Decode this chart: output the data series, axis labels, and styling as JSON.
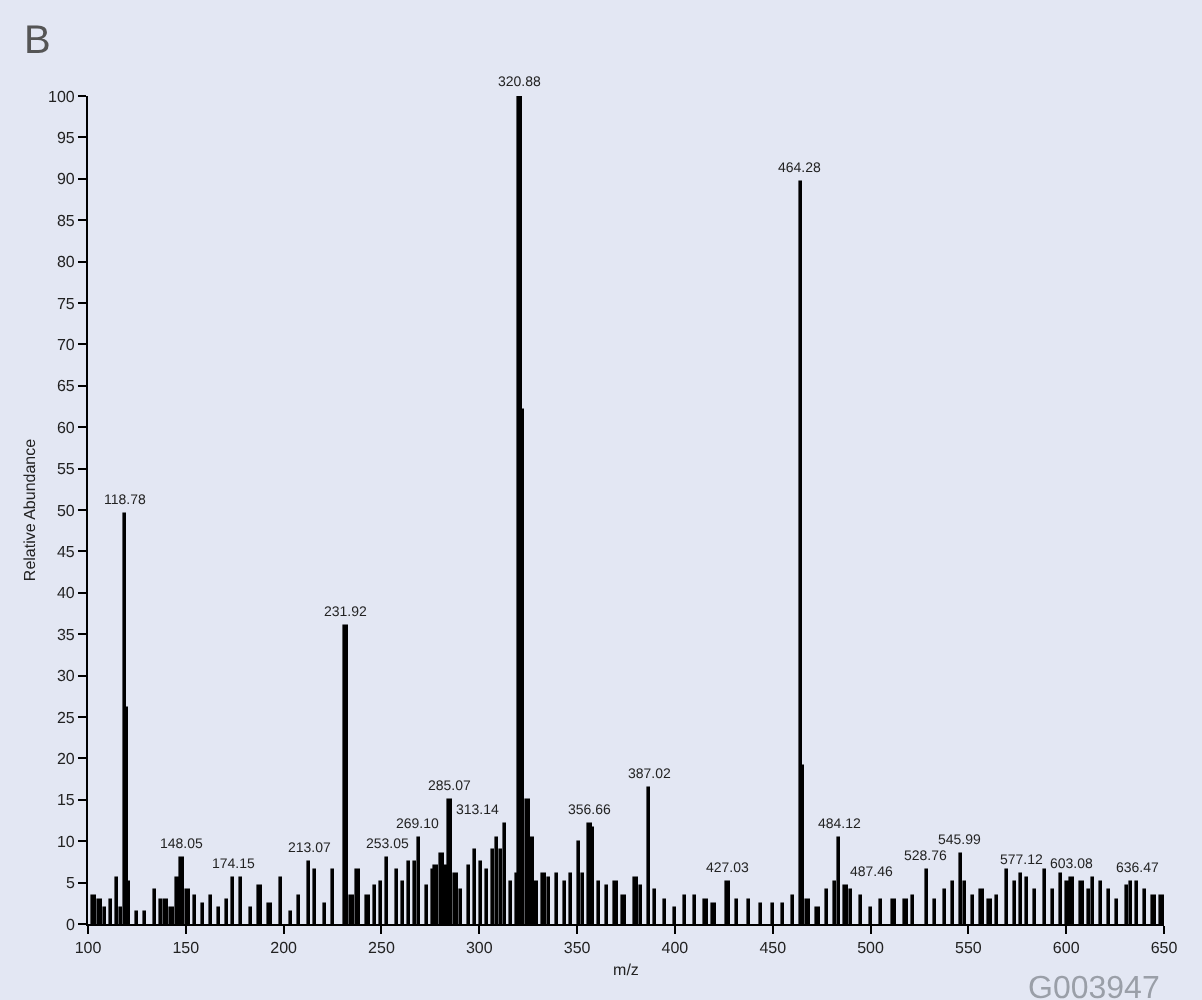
{
  "chart_data": {
    "type": "bar",
    "title": "B",
    "xlabel": "m/z",
    "ylabel": "Relative Abundance",
    "color": "#000000",
    "x": [
      103,
      106,
      109,
      112,
      115,
      117,
      118.78,
      120.2,
      121,
      125,
      129,
      134,
      137,
      140,
      143,
      146,
      148.05,
      151,
      155,
      159,
      163,
      167,
      171,
      174.15,
      178,
      183,
      188,
      193,
      199,
      204,
      208,
      213.07,
      216,
      221,
      225,
      231.92,
      235,
      238,
      243,
      247,
      250,
      253.05,
      258,
      261,
      264,
      267,
      269.1,
      273,
      276,
      278,
      281,
      283,
      285.07,
      288,
      291,
      295,
      298,
      301,
      304,
      307,
      309,
      311,
      313.14,
      316,
      319,
      320.88,
      322.0,
      324.8,
      327,
      329,
      333,
      336,
      340,
      344,
      347,
      351,
      353,
      356.66,
      358.4,
      361,
      365,
      370,
      374,
      380,
      383,
      387.02,
      390,
      395,
      400,
      405,
      410,
      416,
      420,
      427.03,
      432,
      438,
      444,
      450,
      455,
      460,
      464.28,
      465.2,
      468,
      473,
      478,
      482,
      484.12,
      487.46,
      490,
      495,
      500,
      505,
      512,
      518,
      522,
      528.76,
      533,
      538,
      542,
      545.99,
      548,
      552,
      557,
      561,
      565,
      570,
      574,
      577.12,
      580,
      584,
      589,
      593,
      597,
      601,
      603.08,
      608,
      612,
      614,
      618,
      622,
      626,
      631,
      633,
      636.47,
      640,
      645,
      649
    ],
    "values": [
      3.5,
      3,
      2,
      3,
      5.5,
      2,
      49.5,
      26,
      5,
      1.5,
      1.5,
      4,
      3,
      3,
      2,
      5.5,
      8,
      4,
      3.5,
      2.5,
      3.5,
      2,
      3,
      5.5,
      5.5,
      2,
      4.5,
      2.5,
      5.5,
      1.5,
      3.5,
      7.5,
      6.5,
      2.5,
      6.5,
      36,
      3.5,
      6.5,
      3.5,
      4.5,
      5,
      8,
      6.5,
      5,
      7.5,
      7.5,
      10.5,
      4.5,
      6.5,
      7,
      8.5,
      7,
      15,
      6,
      4,
      7,
      9,
      7.5,
      6.5,
      9,
      10.5,
      9,
      12,
      5,
      6,
      100,
      62,
      15,
      10.5,
      5,
      6,
      5.5,
      6,
      5,
      6,
      10,
      6,
      12,
      11.5,
      5,
      4.5,
      5,
      3.5,
      5.5,
      4.5,
      16.5,
      4,
      3,
      2,
      3.5,
      3.5,
      3,
      2.5,
      5,
      3,
      3,
      2.5,
      2.5,
      2.5,
      3.5,
      89.5,
      19,
      3,
      2,
      4,
      5,
      10.5,
      4.5,
      4,
      3.5,
      2,
      3,
      3,
      3,
      3.5,
      6.5,
      3,
      4,
      5,
      8.5,
      5,
      3.5,
      4,
      3,
      3.5,
      6.5,
      5,
      6,
      5.5,
      4,
      6.5,
      4,
      6,
      5,
      5.5,
      5,
      4,
      5.5,
      5,
      4,
      3,
      4.5,
      5,
      5,
      4,
      3.5,
      3.5
    ],
    "xlim": [
      100,
      650
    ],
    "xticks": [
      100,
      150,
      200,
      250,
      300,
      350,
      400,
      450,
      500,
      550,
      600,
      650
    ],
    "ylim": [
      0,
      100
    ],
    "yticks": [
      0,
      5,
      10,
      15,
      20,
      25,
      30,
      35,
      40,
      45,
      50,
      55,
      60,
      65,
      70,
      75,
      80,
      85,
      90,
      95,
      100
    ],
    "grid": false,
    "annotations": [
      {
        "text": "118.78",
        "x": 118.78,
        "y": 49.5
      },
      {
        "text": "148.05",
        "x": 148.05,
        "y": 8
      },
      {
        "text": "174.15",
        "x": 174.15,
        "y": 5.5
      },
      {
        "text": "213.07",
        "x": 213.07,
        "y": 7.5
      },
      {
        "text": "231.92",
        "x": 231.92,
        "y": 36
      },
      {
        "text": "253.05",
        "x": 253.05,
        "y": 8
      },
      {
        "text": "269.10",
        "x": 269.1,
        "y": 10.5
      },
      {
        "text": "285.07",
        "x": 285.07,
        "y": 15
      },
      {
        "text": "313.14",
        "x": 313.14,
        "y": 12
      },
      {
        "text": "320.88",
        "x": 320.88,
        "y": 100
      },
      {
        "text": "356.66",
        "x": 356.66,
        "y": 12
      },
      {
        "text": "387.02",
        "x": 387.02,
        "y": 16.5
      },
      {
        "text": "427.03",
        "x": 427.03,
        "y": 5
      },
      {
        "text": "464.28",
        "x": 464.28,
        "y": 89.5
      },
      {
        "text": "484.12",
        "x": 484.12,
        "y": 10.5
      },
      {
        "text": "487.46",
        "x": 487.46,
        "y": 4.5
      },
      {
        "text": "528.76",
        "x": 528.76,
        "y": 6.5
      },
      {
        "text": "545.99",
        "x": 545.99,
        "y": 8.5
      },
      {
        "text": "577.12",
        "x": 577.12,
        "y": 6
      },
      {
        "text": "603.08",
        "x": 603.08,
        "y": 5.5
      },
      {
        "text": "636.47",
        "x": 636.47,
        "y": 5
      },
      "G003947"
    ]
  }
}
